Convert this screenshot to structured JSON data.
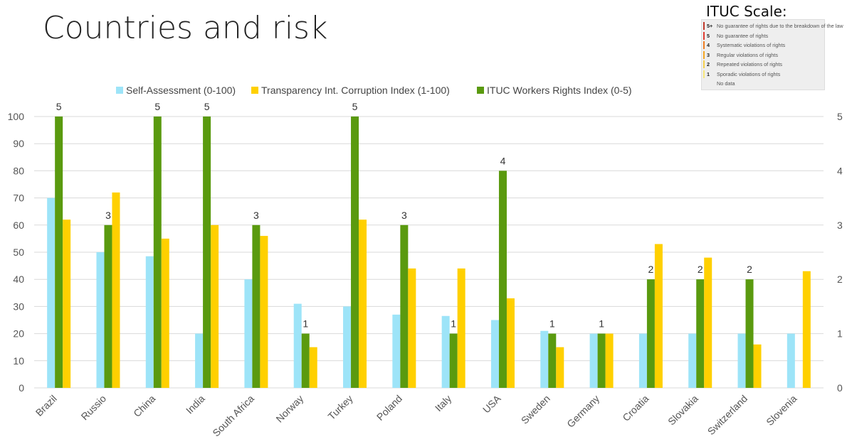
{
  "slide": {
    "title": "Countries and risk"
  },
  "itucScale": {
    "title": "ITUC Scale:",
    "rows": [
      {
        "level": "5+",
        "text": "No guarantee of rights due to the breakdown of the law",
        "color": "#c0392b"
      },
      {
        "level": "5",
        "text": "No guarantee of rights",
        "color": "#e03c31"
      },
      {
        "level": "4",
        "text": "Systematic violations of rights",
        "color": "#ef7d22"
      },
      {
        "level": "3",
        "text": "Regular violations of rights",
        "color": "#f5a623"
      },
      {
        "level": "2",
        "text": "Repeated violations of rights",
        "color": "#f6d04d"
      },
      {
        "level": "1",
        "text": "Sporadic violations of rights",
        "color": "#f8e77a"
      },
      {
        "level": "",
        "text": "No data",
        "color": "#eeeeee"
      }
    ]
  },
  "chart_data": {
    "type": "bar",
    "categories": [
      "Brazil",
      "Russio",
      "China",
      "India",
      "South Africa",
      "Norway",
      "Turkey",
      "Poland",
      "Italy",
      "USA",
      "Sweden",
      "Germany",
      "Croatia",
      "Slovakia",
      "Switzerland",
      "Slovenia"
    ],
    "series": [
      {
        "name": "Self-Assessment (0-100)",
        "axis": "left",
        "color": "#9de4f8",
        "values": [
          70,
          50,
          48.5,
          20,
          40,
          31,
          30,
          27,
          26.5,
          25,
          21,
          20,
          20,
          20,
          20,
          20
        ]
      },
      {
        "name": "ITUC Workers Rights Index (0-5)",
        "axis": "right",
        "color": "#5a9a0f",
        "values": [
          5,
          3,
          5,
          5,
          3,
          1,
          5,
          3,
          1,
          4,
          1,
          1,
          2,
          2,
          2,
          null
        ],
        "data_labels": [
          "5",
          "3",
          "5",
          "5",
          "3",
          "1",
          "5",
          "3",
          "1",
          "4",
          "1",
          "1",
          "2",
          "2",
          "2",
          ""
        ]
      },
      {
        "name": "Transparency Int. Corruption Index (1-100)",
        "axis": "left",
        "color": "#ffd000",
        "values": [
          62,
          72,
          55,
          60,
          56,
          15,
          62,
          44,
          44,
          33,
          15,
          20,
          53,
          48,
          16,
          43
        ]
      }
    ],
    "legend_order": [
      "Self-Assessment (0-100)",
      "Transparency Int. Corruption Index (1-100)",
      "ITUC Workers Rights Index (0-5)"
    ],
    "y_left": {
      "min": 0,
      "max": 100,
      "ticks": [
        0,
        10,
        20,
        30,
        40,
        50,
        60,
        70,
        80,
        90,
        100
      ]
    },
    "y_right": {
      "min": 0,
      "max": 5,
      "ticks": [
        0,
        1,
        2,
        3,
        4,
        5
      ]
    },
    "grid": true,
    "legend_position": "top"
  }
}
